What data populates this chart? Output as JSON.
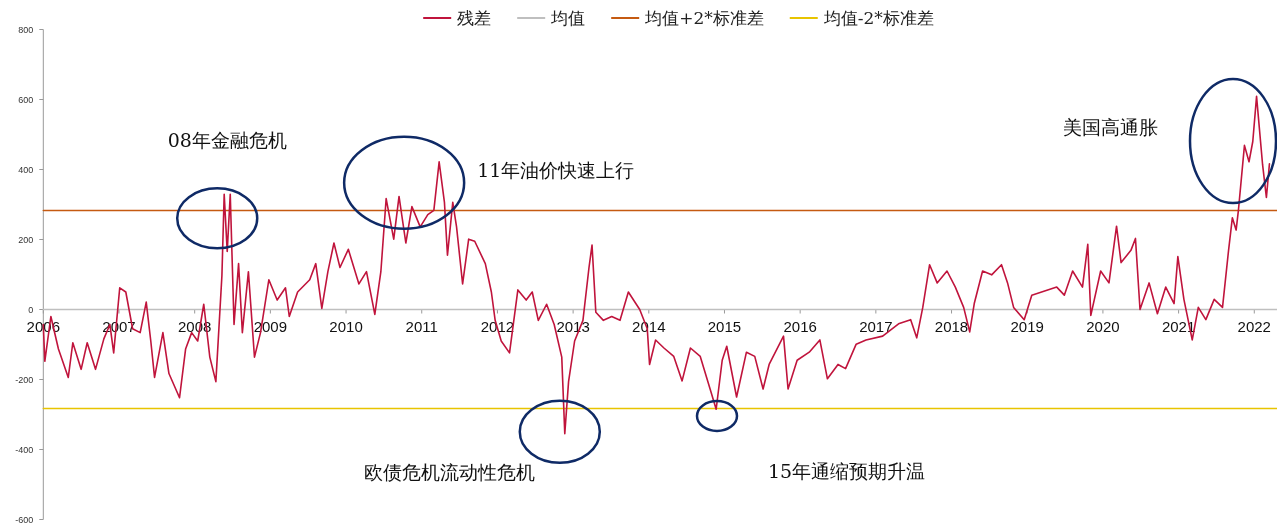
{
  "chart_data": {
    "type": "line",
    "legend": "top",
    "marker": "none",
    "xlim": [
      2006,
      2022.3
    ],
    "ylim": [
      -600,
      800
    ],
    "xticks": [
      2006,
      2007,
      2008,
      2009,
      2010,
      2011,
      2012,
      2013,
      2014,
      2015,
      2016,
      2017,
      2018,
      2019,
      2020,
      2021,
      2022
    ],
    "yticks": [
      -600,
      -400,
      -200,
      0,
      200,
      400,
      600,
      800
    ],
    "series": [
      {
        "name": "残差",
        "color": "#c0143c",
        "x": [
          2006.0,
          2006.02,
          2006.1,
          2006.2,
          2006.33,
          2006.39,
          2006.5,
          2006.58,
          2006.69,
          2006.8,
          2006.88,
          2006.93,
          2007.01,
          2007.09,
          2007.18,
          2007.28,
          2007.36,
          2007.42,
          2007.47,
          2007.58,
          2007.66,
          2007.8,
          2007.88,
          2007.96,
          2008.04,
          2008.12,
          2008.2,
          2008.28,
          2008.36,
          2008.39,
          2008.43,
          2008.47,
          2008.52,
          2008.58,
          2008.63,
          2008.71,
          2008.79,
          2008.87,
          2008.98,
          2009.09,
          2009.2,
          2009.25,
          2009.36,
          2009.52,
          2009.6,
          2009.68,
          2009.76,
          2009.84,
          2009.92,
          2010.03,
          2010.17,
          2010.27,
          2010.38,
          2010.46,
          2010.53,
          2010.63,
          2010.7,
          2010.79,
          2010.87,
          2010.98,
          2011.08,
          2011.16,
          2011.23,
          2011.3,
          2011.34,
          2011.41,
          2011.46,
          2011.54,
          2011.62,
          2011.7,
          2011.84,
          2011.92,
          2011.97,
          2012.05,
          2012.16,
          2012.27,
          2012.38,
          2012.46,
          2012.54,
          2012.65,
          2012.75,
          2012.85,
          2012.89,
          2012.94,
          2013.02,
          2013.13,
          2013.21,
          2013.25,
          2013.3,
          2013.4,
          2013.51,
          2013.62,
          2013.73,
          2013.88,
          2013.98,
          2014.01,
          2014.09,
          2014.2,
          2014.33,
          2014.44,
          2014.55,
          2014.68,
          2014.81,
          2014.89,
          2014.97,
          2015.03,
          2015.16,
          2015.29,
          2015.4,
          2015.51,
          2015.59,
          2015.78,
          2015.84,
          2015.96,
          2016.12,
          2016.26,
          2016.36,
          2016.5,
          2016.6,
          2016.74,
          2016.87,
          2017.09,
          2017.3,
          2017.46,
          2017.54,
          2017.62,
          2017.71,
          2017.81,
          2017.94,
          2018.05,
          2018.16,
          2018.24,
          2018.3,
          2018.41,
          2018.53,
          2018.66,
          2018.74,
          2018.82,
          2018.96,
          2019.06,
          2019.22,
          2019.39,
          2019.49,
          2019.6,
          2019.73,
          2019.8,
          2019.84,
          2019.97,
          2020.08,
          2020.18,
          2020.24,
          2020.37,
          2020.43,
          2020.49,
          2020.61,
          2020.72,
          2020.83,
          2020.94,
          2020.99,
          2021.07,
          2021.18,
          2021.26,
          2021.36,
          2021.47,
          2021.58,
          2021.66,
          2021.71,
          2021.76,
          2021.79,
          2021.87,
          2021.93,
          2021.98,
          2022.03,
          2022.11,
          2022.16,
          2022.2
        ],
        "values": [
          -43,
          -148,
          -20,
          -113,
          -194,
          -95,
          -171,
          -95,
          -171,
          -84,
          -43,
          -124,
          62,
          50,
          -55,
          -66,
          21,
          -90,
          -194,
          -66,
          -183,
          -252,
          -113,
          -66,
          -90,
          15,
          -136,
          -206,
          97,
          329,
          166,
          329,
          -43,
          131,
          -66,
          108,
          -136,
          -66,
          85,
          27,
          62,
          -20,
          50,
          85,
          131,
          3,
          108,
          190,
          120,
          172,
          73,
          108,
          -14,
          108,
          317,
          201,
          323,
          190,
          294,
          236,
          271,
          283,
          422,
          306,
          155,
          306,
          236,
          73,
          201,
          195,
          131,
          50,
          -31,
          -90,
          -124,
          56,
          27,
          50,
          -31,
          15,
          -43,
          -136,
          -355,
          -206,
          -90,
          -31,
          120,
          184,
          -8,
          -31,
          -20,
          -31,
          50,
          0,
          -55,
          -157,
          -87,
          -110,
          -134,
          -204,
          -110,
          -134,
          -227,
          -285,
          -145,
          -105,
          -250,
          -122,
          -134,
          -227,
          -157,
          -76,
          -227,
          -145,
          -122,
          -87,
          -198,
          -157,
          -169,
          -99,
          -87,
          -76,
          -41,
          -29,
          -81,
          6,
          128,
          76,
          110,
          64,
          6,
          -64,
          17,
          110,
          99,
          128,
          76,
          6,
          -29,
          41,
          52,
          64,
          41,
          110,
          64,
          186,
          -17,
          110,
          76,
          238,
          134,
          169,
          203,
          0,
          76,
          -12,
          64,
          17,
          151,
          29,
          -87,
          6,
          -29,
          29,
          6,
          169,
          262,
          227,
          283,
          469,
          422,
          480,
          609,
          413,
          320,
          416
        ]
      },
      {
        "name": "均值",
        "color": "#bfbfbf",
        "x": [
          2006,
          2022.3
        ],
        "values": [
          0,
          0
        ]
      },
      {
        "name": "均值+2*标准差",
        "color": "#c55a11",
        "x": [
          2006,
          2022.3
        ],
        "values": [
          283,
          283
        ]
      },
      {
        "name": "均值-2*标准差",
        "color": "#e8c400",
        "x": [
          2006,
          2022.3
        ],
        "values": [
          -283,
          -283
        ]
      }
    ],
    "annotations": [
      {
        "text": "08年金融危机",
        "x": 2008.43,
        "y": 329
      },
      {
        "text": "11年油价快速上行",
        "x": 2011.23,
        "y": 422
      },
      {
        "text": "欧债危机流动性危机",
        "x": 2012.89,
        "y": -355
      },
      "15年通缩预期升温",
      "美国高通胀"
    ]
  }
}
